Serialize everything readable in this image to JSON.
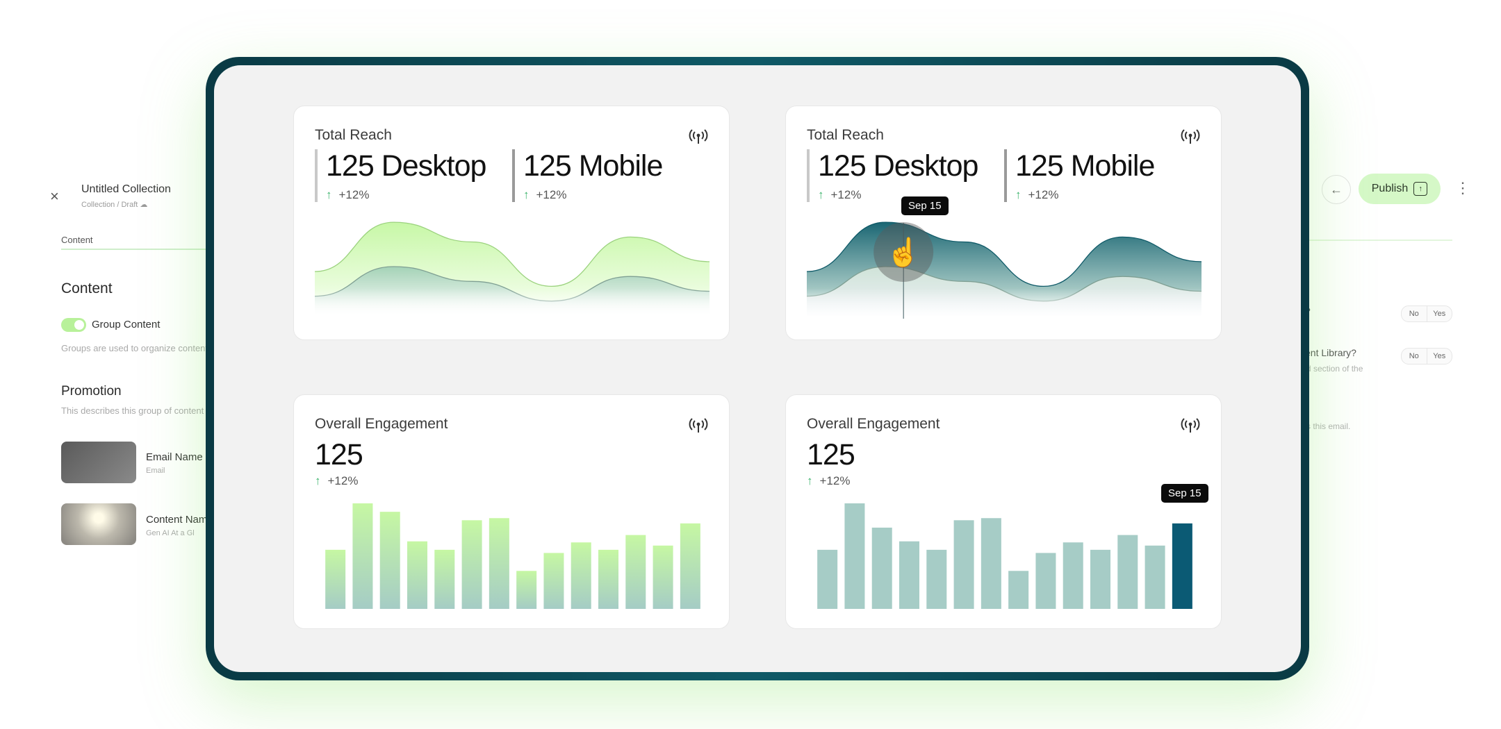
{
  "editor": {
    "close": "×",
    "title": "Untitled Collection",
    "crumbs": "Collection  /  Draft",
    "tab_content": "Content",
    "section_content": "Content",
    "toggle_label": "Group Content",
    "group_help": "Groups are used to organize content",
    "section_promotion": "Promotion",
    "promo_help": "This describes this group of content",
    "assets": [
      {
        "name": "Email Name",
        "sub": "Email"
      },
      {
        "name": "Content Nam",
        "sub": "Gen AI At a Gl"
      }
    ],
    "publish_label": "Publish",
    "back_icon": "arrow-left-icon",
    "more_icon": "more-vertical-icon",
    "right_q1": "?",
    "right_q2": "ent Library?",
    "right_help2": "d section of the",
    "right_help3": "s this email.",
    "seg_no": "No",
    "seg_yes": "Yes"
  },
  "cards": {
    "reach1": {
      "title": "Total Reach",
      "desktop_value": "125 Desktop",
      "desktop_change": "+12%",
      "mobile_value": "125 Mobile",
      "mobile_change": "+12%"
    },
    "reach2": {
      "title": "Total Reach",
      "desktop_value": "125 Desktop",
      "desktop_change": "+12%",
      "mobile_value": "125 Mobile",
      "mobile_change": "+12%",
      "tooltip": "Sep 15"
    },
    "eng1": {
      "title": "Overall Engagement",
      "value": "125",
      "change": "+12%"
    },
    "eng2": {
      "title": "Overall Engagement",
      "value": "125",
      "change": "+12%",
      "tooltip": "Sep 15"
    },
    "up_arrow": "↑",
    "broadcast_icon": "broadcast-icon"
  },
  "colors": {
    "area_light_green": "#c7f7a6",
    "area_dark_teal": "#1a6673",
    "bar_teal": "#a6ccc6",
    "bar_highlight": "#0b5a74",
    "frame": "#0f5966",
    "up_green": "#3bb36b"
  },
  "chart_data": [
    {
      "type": "area",
      "series": [
        {
          "values": [
            0.45,
            0.95,
            0.75,
            0.3,
            0.8,
            0.55
          ]
        },
        {
          "values": [
            0.2,
            0.5,
            0.35,
            0.15,
            0.4,
            0.25
          ]
        }
      ]
    },
    {
      "type": "area",
      "series": [
        {
          "values": [
            0.45,
            0.95,
            0.75,
            0.3,
            0.8,
            0.55
          ]
        },
        {
          "values": [
            0.2,
            0.5,
            0.35,
            0.15,
            0.4,
            0.25
          ]
        }
      ],
      "highlight_index": 1
    },
    {
      "type": "bar",
      "values": [
        56,
        100,
        92,
        64,
        56,
        84,
        86,
        36,
        53,
        63,
        56,
        70,
        60,
        81
      ]
    },
    {
      "type": "bar",
      "values": [
        56,
        100,
        77,
        64,
        56,
        84,
        86,
        36,
        53,
        63,
        56,
        70,
        60,
        81
      ],
      "highlight_index": 13
    }
  ]
}
